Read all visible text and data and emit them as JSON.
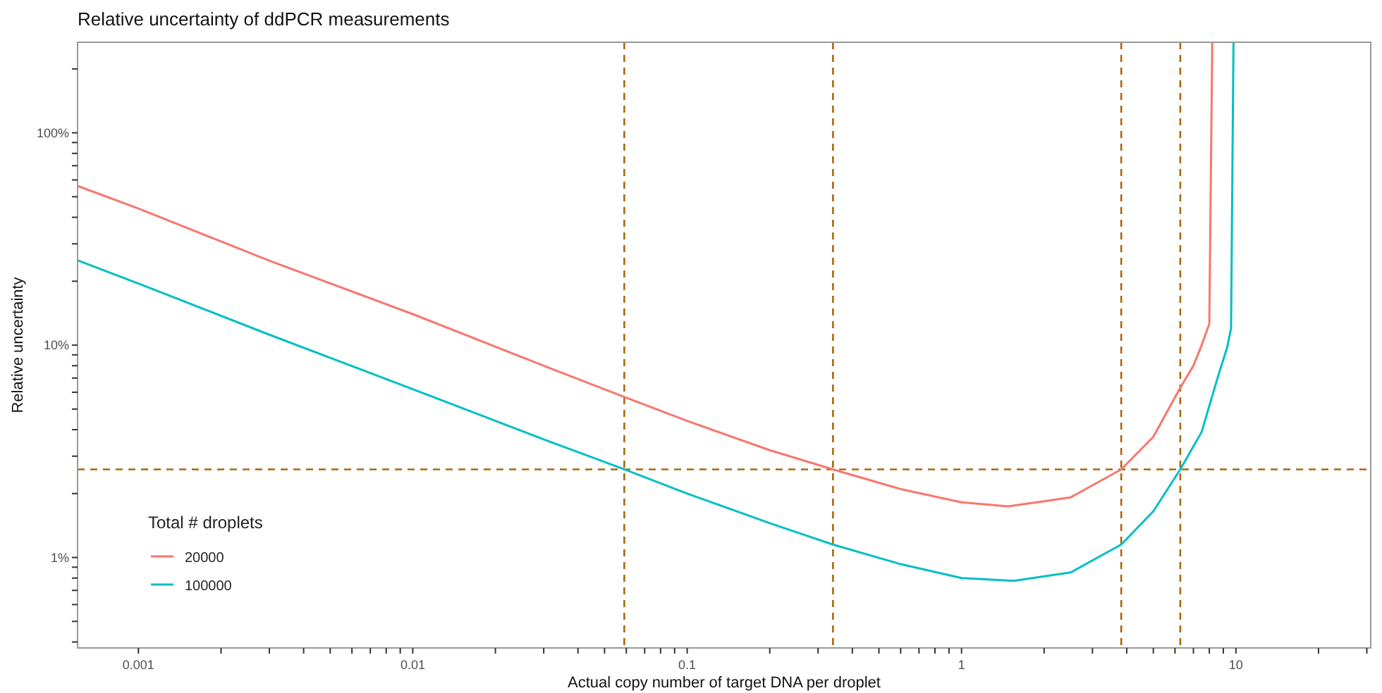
{
  "chart_data": {
    "type": "line",
    "title": "Relative uncertainty of ddPCR measurements",
    "xlabel": "Actual copy number of target DNA per droplet",
    "ylabel": "Relative uncertainty",
    "legend_title": "Total # droplets",
    "log": "xy",
    "grid": false,
    "legend": "bottom left",
    "line_style": "solid",
    "xlim": [
      0.0006,
      31
    ],
    "ylim": [
      0.375,
      267
    ],
    "xticks": [
      0.001,
      {
        "value": 0.002,
        "label": null
      },
      {
        "value": 0.003,
        "label": null
      },
      {
        "value": 0.004,
        "label": null
      },
      {
        "value": 0.005,
        "label": null
      },
      {
        "value": 0.006,
        "label": null
      },
      {
        "value": 0.007,
        "label": null
      },
      {
        "value": 0.008,
        "label": null
      },
      {
        "value": 0.009,
        "label": null
      },
      0.01,
      {
        "value": 0.02,
        "label": null
      },
      {
        "value": 0.03,
        "label": null
      },
      {
        "value": 0.04,
        "label": null
      },
      {
        "value": 0.05,
        "label": null
      },
      {
        "value": 0.06,
        "label": null
      },
      {
        "value": 0.07,
        "label": null
      },
      {
        "value": 0.08,
        "label": null
      },
      {
        "value": 0.09,
        "label": null
      },
      0.1,
      {
        "value": 0.2,
        "label": null
      },
      {
        "value": 0.3,
        "label": null
      },
      {
        "value": 0.4,
        "label": null
      },
      {
        "value": 0.5,
        "label": null
      },
      {
        "value": 0.6,
        "label": null
      },
      {
        "value": 0.7,
        "label": null
      },
      {
        "value": 0.8,
        "label": null
      },
      {
        "value": 0.9,
        "label": null
      },
      1,
      {
        "value": 2,
        "label": null
      },
      {
        "value": 3,
        "label": null
      },
      {
        "value": 4,
        "label": null
      },
      {
        "value": 5,
        "label": null
      },
      {
        "value": 6,
        "label": null
      },
      {
        "value": 7,
        "label": null
      },
      {
        "value": 8,
        "label": null
      },
      {
        "value": 9,
        "label": null
      },
      10,
      {
        "value": 20,
        "label": null
      },
      {
        "value": 30,
        "label": null
      }
    ],
    "yticks": [
      {
        "value": 0.4,
        "label": null
      },
      {
        "value": 0.5,
        "label": null
      },
      {
        "value": 0.6,
        "label": null
      },
      {
        "value": 0.7,
        "label": null
      },
      {
        "value": 0.8,
        "label": null
      },
      {
        "value": 0.9,
        "label": null
      },
      {
        "value": 1,
        "label": "1%"
      },
      {
        "value": 2,
        "label": null
      },
      {
        "value": 3,
        "label": null
      },
      {
        "value": 4,
        "label": null
      },
      {
        "value": 5,
        "label": null
      },
      {
        "value": 6,
        "label": null
      },
      {
        "value": 7,
        "label": null
      },
      {
        "value": 8,
        "label": null
      },
      {
        "value": 9,
        "label": null
      },
      {
        "value": 10,
        "label": "10%"
      },
      {
        "value": 20,
        "label": null
      },
      {
        "value": 30,
        "label": null
      },
      {
        "value": 40,
        "label": null
      },
      {
        "value": 50,
        "label": null
      },
      {
        "value": 60,
        "label": null
      },
      {
        "value": 70,
        "label": null
      },
      {
        "value": 80,
        "label": null
      },
      {
        "value": 90,
        "label": null
      },
      {
        "value": 100,
        "label": "100%"
      },
      {
        "value": 200,
        "label": null
      }
    ],
    "ref_lines": [
      {
        "axis": "y",
        "value": 2.6,
        "color": "#a8680e",
        "line_style": "dashed"
      },
      {
        "axis": "x",
        "value": 0.059,
        "color": "#a8680e",
        "line_style": "dashed"
      },
      {
        "axis": "x",
        "value": 0.34,
        "color": "#a8680e",
        "line_style": "dashed"
      },
      {
        "axis": "x",
        "value": 3.82,
        "color": "#a8680e",
        "line_style": "dashed"
      },
      {
        "axis": "x",
        "value": 6.27,
        "color": "#a8680e",
        "line_style": "dashed"
      }
    ],
    "series": [
      {
        "name": "20000",
        "color": "#f8766d",
        "x": [
          0.000605,
          0.001,
          0.003,
          0.01,
          0.03,
          0.059,
          0.1,
          0.2,
          0.34,
          0.6,
          1,
          1.48,
          2.5,
          3.82,
          5,
          6.27,
          7,
          7.5,
          8,
          8.2
        ],
        "values": [
          56,
          44,
          25,
          14,
          8.0,
          5.7,
          4.4,
          3.2,
          2.6,
          2.1,
          1.82,
          1.74,
          1.92,
          2.6,
          3.7,
          6.3,
          8,
          10,
          12.6,
          267
        ]
      },
      {
        "name": "100000",
        "color": "#00bfc4",
        "x": [
          0.000605,
          0.001,
          0.003,
          0.01,
          0.03,
          0.059,
          0.1,
          0.2,
          0.34,
          0.6,
          1,
          1.55,
          2.5,
          3.82,
          5,
          6.27,
          7.5,
          8.6,
          9.3,
          9.6,
          9.8
        ],
        "values": [
          25,
          19.5,
          11.2,
          6.2,
          3.6,
          2.6,
          2.0,
          1.45,
          1.15,
          0.93,
          0.8,
          0.776,
          0.85,
          1.15,
          1.65,
          2.6,
          3.9,
          7.1,
          9.8,
          12,
          267
        ]
      }
    ]
  }
}
